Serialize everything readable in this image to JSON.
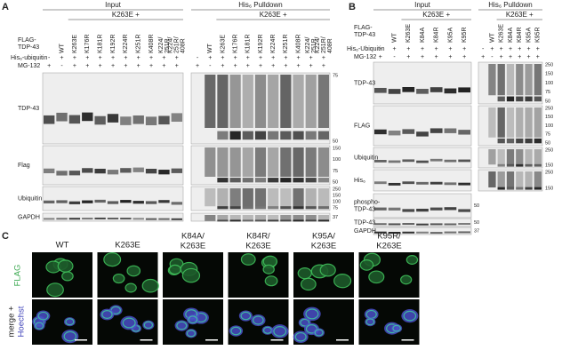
{
  "panel_a": {
    "letter": "A",
    "input": "Input",
    "pulldown": "His₆ Pulldown",
    "group": "K263E +",
    "flag_label": [
      "FLAG-",
      "TDP-43"
    ],
    "his_label": "His₆-ubiquitin",
    "mg_label": "MG-132",
    "lanes": [
      null,
      [
        "WT"
      ],
      [
        "K263E"
      ],
      [
        "K176R"
      ],
      [
        "K181R"
      ],
      [
        "K192R"
      ],
      [
        "K224R"
      ],
      [
        "K251R"
      ],
      [
        "K408R"
      ],
      [
        "K224/",
        "251R"
      ],
      [
        "K224/",
        "251R/",
        "408R"
      ]
    ],
    "his": [
      "-",
      "+",
      "+",
      "+",
      "+",
      "+",
      "+",
      "+",
      "+",
      "+",
      "+"
    ],
    "mg": [
      "+",
      "-",
      "+",
      "+",
      "+",
      "+",
      "+",
      "+",
      "+",
      "+",
      "+"
    ],
    "blots": [
      {
        "label": "TDP-43",
        "mw": [
          "75",
          "50"
        ]
      },
      {
        "label": "Flag",
        "mw": [
          "150",
          "100",
          "75",
          "50"
        ]
      },
      {
        "label": "Ubiquitin",
        "mw": [
          "250",
          "150",
          "100",
          "75"
        ]
      },
      {
        "label": "GAPDH",
        "mw": [
          "37"
        ]
      }
    ]
  },
  "panel_b": {
    "letter": "B",
    "input": "Input",
    "pulldown": "His₆ Pulldown",
    "group": "K263E +",
    "flag_label": [
      "FLAG-",
      "TDP-43"
    ],
    "his_label": "His₆-Ubiquitin",
    "mg_label": "MG-132",
    "lanes": [
      null,
      [
        "WT"
      ],
      [
        "K263E"
      ],
      [
        "K84A"
      ],
      [
        "K84R"
      ],
      [
        "K95A"
      ],
      [
        "K95R"
      ]
    ],
    "his": [
      "-",
      "+",
      "+",
      "+",
      "+",
      "+",
      "+"
    ],
    "mg": [
      "+",
      "-",
      "+",
      "+",
      "+",
      "+",
      "+"
    ],
    "blots": [
      {
        "label": "TDP-43",
        "mw": [
          "250",
          "150",
          "100",
          "75",
          "50"
        ]
      },
      {
        "label": "FLAG",
        "mw": [
          "250",
          "150",
          "100",
          "75",
          "50"
        ]
      },
      {
        "label": "Ubiquitin",
        "mw": [
          "250",
          "150"
        ]
      },
      {
        "label": "His₆",
        "mw": [
          "250",
          "150"
        ]
      },
      {
        "label": [
          "phospho-",
          "TDP-43"
        ],
        "mw": [
          "50"
        ]
      },
      {
        "label": "TDP-43",
        "mw": [
          "50"
        ]
      },
      {
        "label": "GAPDH",
        "mw": [
          "37"
        ]
      }
    ]
  },
  "panel_c": {
    "letter": "C",
    "columns": [
      [
        "WT"
      ],
      [
        "K263E"
      ],
      [
        "K84A/",
        "K263E"
      ],
      [
        "K84R/",
        "K263E"
      ],
      [
        "K95A/",
        "K263E"
      ],
      [
        "K95R/",
        "K263E"
      ]
    ],
    "row_flag": "FLAG",
    "row_merge": [
      "merge +",
      "Hoechst"
    ]
  }
}
